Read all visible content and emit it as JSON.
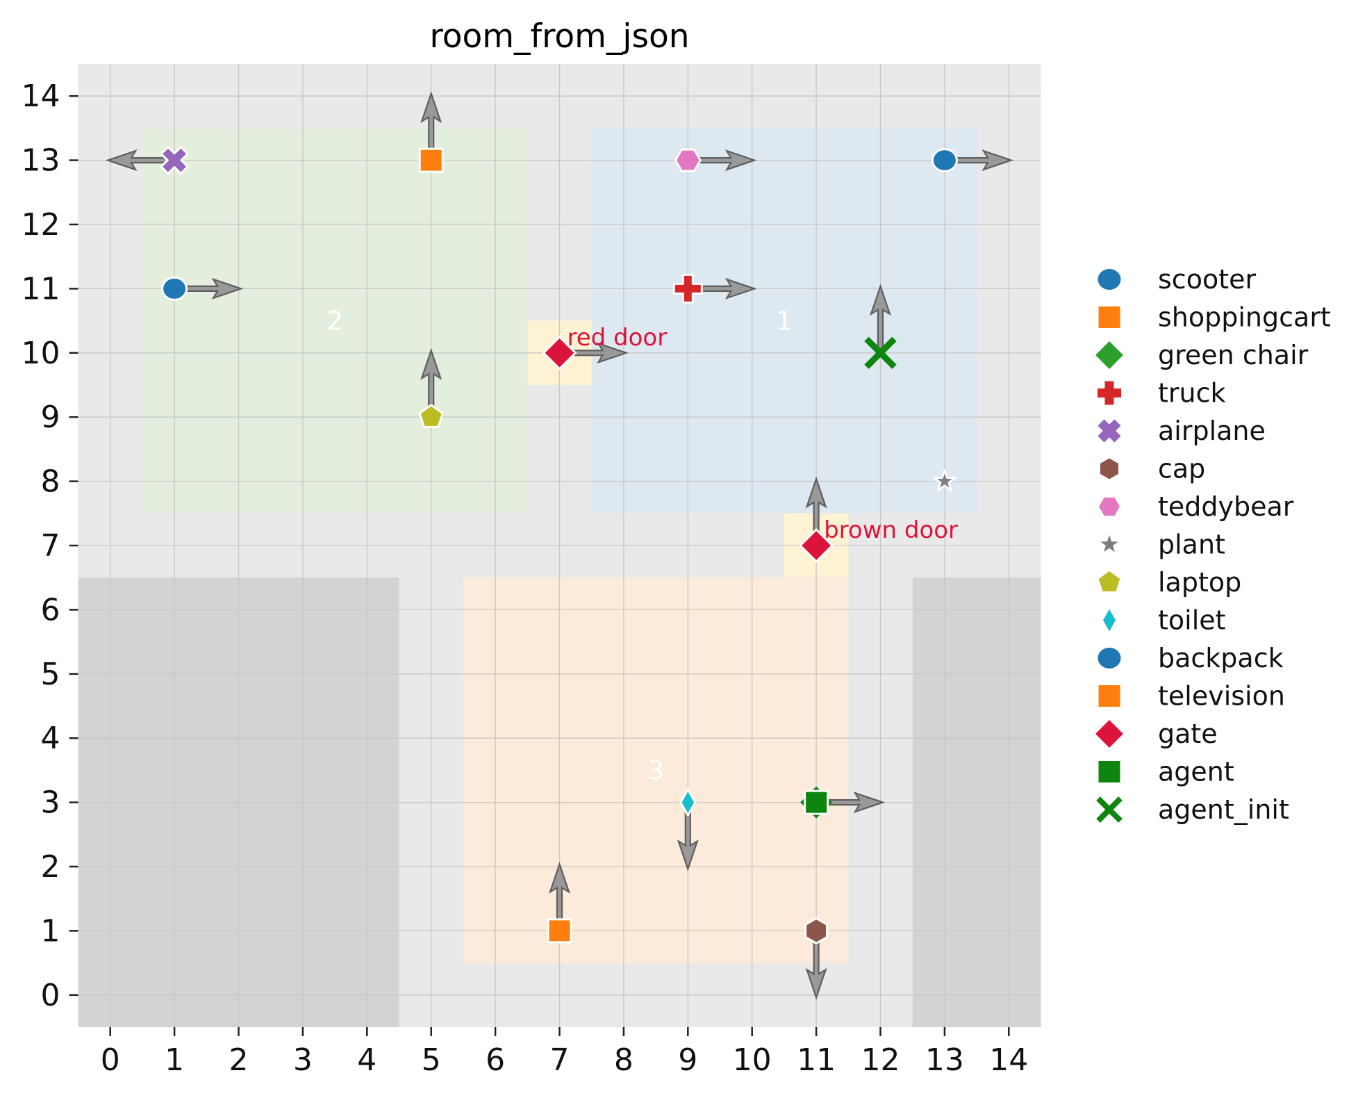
{
  "figure": {
    "title": "room_from_json"
  },
  "chart_data": {
    "type": "scatter",
    "title": "room_from_json",
    "xlabel": "",
    "ylabel": "",
    "xlim": [
      -0.5,
      14.5
    ],
    "ylim": [
      -0.5,
      14.5
    ],
    "x_ticks": [
      0,
      1,
      2,
      3,
      4,
      5,
      6,
      7,
      8,
      9,
      10,
      11,
      12,
      13,
      14
    ],
    "y_ticks": [
      0,
      1,
      2,
      3,
      4,
      5,
      6,
      7,
      8,
      9,
      10,
      11,
      12,
      13,
      14
    ],
    "grid": true,
    "legend_position": "right",
    "colors": {
      "axes_background": "#e9e9e9",
      "grid_line": "#c7c7c7",
      "tick_text": "#111111",
      "title_text": "#000000",
      "room_label_text": "#ffffff",
      "arrow_fill": "#999999",
      "arrow_edge": "#5e5e5e",
      "marker_edge": "#ffffff",
      "dark_block": "#d3d3d3",
      "room1_blue": "#dee8f1",
      "room2_green": "#e3eedd",
      "room3_orange": "#fcebda",
      "door_cell": "#fdf3d3",
      "door_text": "#dc143c"
    },
    "regions": [
      {
        "name": "room-2-floor",
        "x0": 0.5,
        "x1": 6.5,
        "y0": 7.5,
        "y1": 13.5,
        "colorKey": "room2_green"
      },
      {
        "name": "room-1-floor",
        "x0": 7.5,
        "x1": 13.5,
        "y0": 7.5,
        "y1": 13.5,
        "colorKey": "room1_blue"
      },
      {
        "name": "room-3-floor",
        "x0": 5.5,
        "x1": 11.5,
        "y0": 0.5,
        "y1": 6.5,
        "colorKey": "room3_orange"
      },
      {
        "name": "blocked-area-left",
        "x0": -0.5,
        "x1": 4.5,
        "y0": -0.5,
        "y1": 6.5,
        "colorKey": "dark_block"
      },
      {
        "name": "blocked-area-right",
        "x0": 12.5,
        "x1": 14.5,
        "y0": -0.5,
        "y1": 6.5,
        "colorKey": "dark_block"
      },
      {
        "name": "red-door-cell",
        "x0": 6.5,
        "x1": 7.5,
        "y0": 9.5,
        "y1": 10.5,
        "colorKey": "door_cell"
      },
      {
        "name": "brown-door-cell",
        "x0": 10.5,
        "x1": 11.5,
        "y0": 6.5,
        "y1": 7.5,
        "colorKey": "door_cell"
      }
    ],
    "room_labels": [
      {
        "text": "2",
        "x": 3.5,
        "y": 10.5
      },
      {
        "text": "1",
        "x": 10.5,
        "y": 10.5
      },
      {
        "text": "3",
        "x": 8.5,
        "y": 3.5
      }
    ],
    "points": [
      {
        "name": "airplane",
        "x": 1,
        "y": 13,
        "marker": "x-fat",
        "color": "#9467bd",
        "dir": "left"
      },
      {
        "name": "shoppingcart",
        "x": 5,
        "y": 13,
        "marker": "square",
        "color": "#ff7f0e",
        "dir": "up"
      },
      {
        "name": "teddybear",
        "x": 9,
        "y": 13,
        "marker": "hexagon-side",
        "color": "#e377c2",
        "dir": "right"
      },
      {
        "name": "backpack",
        "x": 13,
        "y": 13,
        "marker": "circle",
        "color": "#1f77b4",
        "dir": "right"
      },
      {
        "name": "scooter",
        "x": 1,
        "y": 11,
        "marker": "circle",
        "color": "#1f77b4",
        "dir": "right"
      },
      {
        "name": "truck",
        "x": 9,
        "y": 11,
        "marker": "plus",
        "color": "#d62728",
        "dir": "right"
      },
      {
        "name": "gate-red-door",
        "x": 7,
        "y": 10,
        "marker": "diamond",
        "color": "#dc143c",
        "dir": "right",
        "label": "red door"
      },
      {
        "name": "agent-init",
        "x": 12,
        "y": 10,
        "marker": "x-thin",
        "color": "#0e850e",
        "dir": "up"
      },
      {
        "name": "laptop",
        "x": 5,
        "y": 9,
        "marker": "pentagon",
        "color": "#bcbd22",
        "dir": "up"
      },
      {
        "name": "plant",
        "x": 13,
        "y": 8,
        "marker": "star",
        "color": "#7f7f7f",
        "dir": null
      },
      {
        "name": "gate-brown-door",
        "x": 11,
        "y": 7,
        "marker": "diamond",
        "color": "#dc143c",
        "dir": "up",
        "label": "brown door"
      },
      {
        "name": "toilet",
        "x": 9,
        "y": 3,
        "marker": "thin-diamond",
        "color": "#17becf",
        "dir": "down"
      },
      {
        "name": "agent",
        "x": 11,
        "y": 3,
        "marker": "agent-square",
        "color": "#0e850e",
        "dir": "right"
      },
      {
        "name": "television",
        "x": 7,
        "y": 1,
        "marker": "square",
        "color": "#ff7f0e",
        "dir": "up"
      },
      {
        "name": "cap",
        "x": 11,
        "y": 1,
        "marker": "hexagon-top",
        "color": "#8c564b",
        "dir": "down"
      }
    ],
    "legend": [
      {
        "label": "scooter",
        "marker": "circle",
        "color": "#1f77b4"
      },
      {
        "label": "shoppingcart",
        "marker": "square",
        "color": "#ff7f0e"
      },
      {
        "label": "green chair",
        "marker": "diamond",
        "color": "#2ca02c"
      },
      {
        "label": "truck",
        "marker": "plus",
        "color": "#d62728"
      },
      {
        "label": "airplane",
        "marker": "x-fat",
        "color": "#9467bd"
      },
      {
        "label": "cap",
        "marker": "hexagon-top",
        "color": "#8c564b"
      },
      {
        "label": "teddybear",
        "marker": "hexagon-side",
        "color": "#e377c2"
      },
      {
        "label": "plant",
        "marker": "star",
        "color": "#7f7f7f"
      },
      {
        "label": "laptop",
        "marker": "pentagon",
        "color": "#bcbd22"
      },
      {
        "label": "toilet",
        "marker": "thin-diamond",
        "color": "#17becf"
      },
      {
        "label": "backpack",
        "marker": "circle",
        "color": "#1f77b4"
      },
      {
        "label": "television",
        "marker": "square",
        "color": "#ff7f0e"
      },
      {
        "label": "gate",
        "marker": "diamond",
        "color": "#dc143c"
      },
      {
        "label": "agent",
        "marker": "square",
        "color": "#0e850e"
      },
      {
        "label": "agent_init",
        "marker": "x-thin",
        "color": "#0e850e"
      }
    ]
  }
}
